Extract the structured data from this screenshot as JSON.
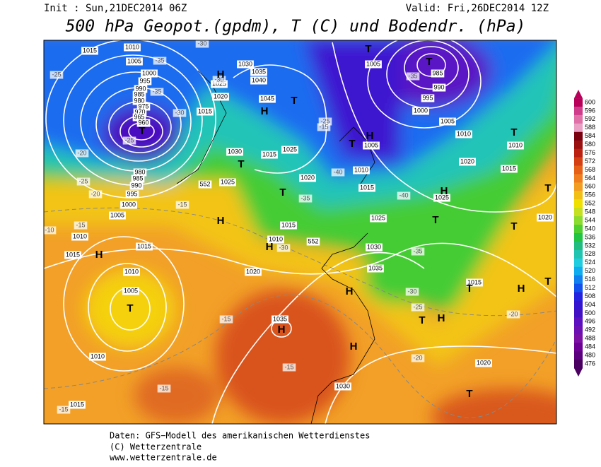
{
  "header": {
    "init": "Init : Sun,21DEC2014 06Z",
    "valid": "Valid: Fri,26DEC2014 12Z",
    "title": "500 hPa Geopot.(gpdm), T (C) und Bodendr. (hPa)"
  },
  "colorbar": {
    "ticks": [
      600,
      596,
      592,
      588,
      584,
      580,
      576,
      572,
      568,
      564,
      560,
      556,
      552,
      548,
      544,
      540,
      536,
      532,
      528,
      524,
      520,
      516,
      512,
      508,
      504,
      500,
      496,
      492,
      488,
      484,
      480,
      476
    ],
    "colors": [
      "#b8005a",
      "#d03c8c",
      "#e070a8",
      "#eaa0c4",
      "#7a0010",
      "#9a1010",
      "#bc2010",
      "#d44012",
      "#e66018",
      "#f07e1e",
      "#f29e22",
      "#f2c014",
      "#f0e000",
      "#c4e020",
      "#8cdc30",
      "#50d030",
      "#22c444",
      "#20bc80",
      "#20c4b0",
      "#20cce0",
      "#10acf0",
      "#1080f0",
      "#1050ec",
      "#2424e0",
      "#3414d0",
      "#4410c4",
      "#5c10c0",
      "#6c10b4",
      "#7c10a4",
      "#6c0094",
      "#5c0080",
      "#4a0060"
    ]
  },
  "map": {
    "pressure_labels": [
      "1015",
      "1010",
      "1005",
      "1000",
      "995",
      "990",
      "985",
      "980",
      "975",
      "970",
      "965",
      "960",
      "1015",
      "1020",
      "1025",
      "1030",
      "1035",
      "1040",
      "1045",
      "1030",
      "1015",
      "1025",
      "1020",
      "980",
      "985",
      "990",
      "995",
      "1000",
      "1005",
      "1025",
      "1015",
      "1010",
      "1020",
      "1010",
      "1015",
      "1015",
      "1010",
      "1005",
      "1010",
      "1015",
      "1035",
      "1030",
      "1030",
      "1035",
      "1015",
      "1020",
      "1005",
      "985",
      "990",
      "995",
      "1000",
      "1005",
      "1010",
      "1010",
      "1015",
      "1020",
      "1005",
      "1010",
      "1015",
      "1025",
      "1025",
      "1020"
    ],
    "temperature_labels": [
      "-25",
      "-35",
      "-35",
      "-30",
      "-25",
      "-20",
      "-25",
      "-20",
      "-15",
      "-15",
      "-30",
      "-30",
      "-35",
      "-25",
      "-15",
      "-40",
      "-35",
      "-40",
      "-30",
      "-35",
      "-30",
      "-25",
      "-20",
      "-20",
      "-15",
      "-15",
      "-15",
      "-15",
      "-10"
    ],
    "geopotential_labels": [
      "552",
      "552"
    ],
    "centers": [
      "T",
      "T",
      "H",
      "H",
      "T",
      "T",
      "T",
      "H",
      "T",
      "T",
      "H",
      "T",
      "T",
      "H",
      "H",
      "T",
      "H",
      "H",
      "H",
      "H",
      "T",
      "H",
      "T",
      "H",
      "T",
      "T",
      "T",
      "T"
    ]
  },
  "footer": {
    "source": "Daten: GFS−Modell des amerikanischen Wetterdienstes",
    "copyright": "(C) Wetterzentrale",
    "url": "www.wetterzentrale.de"
  }
}
